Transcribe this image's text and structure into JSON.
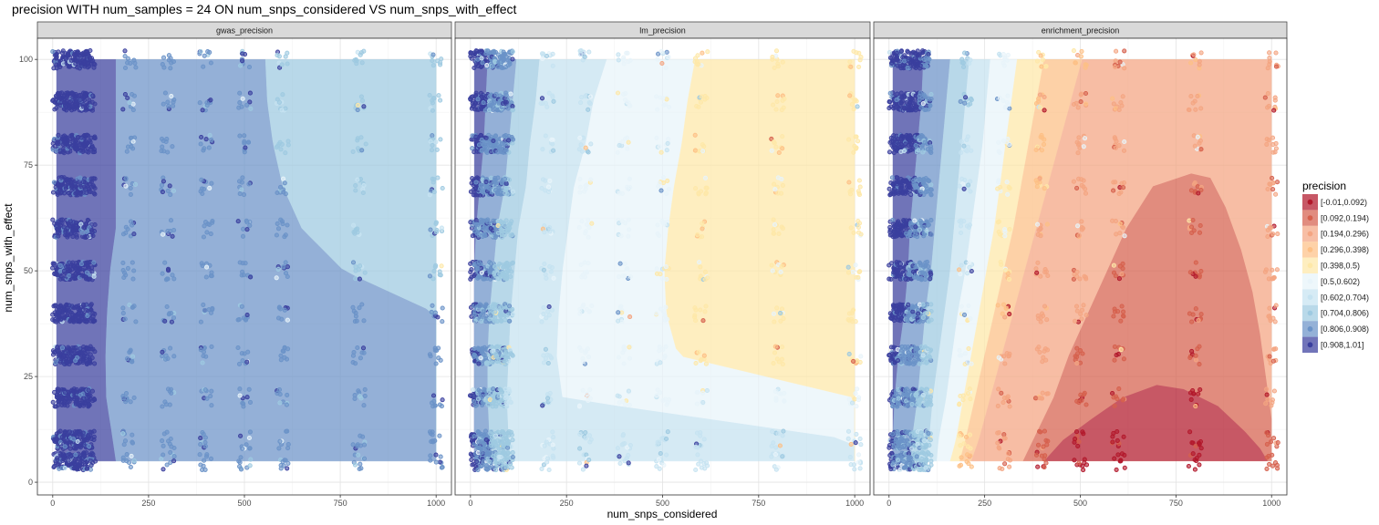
{
  "chart_data": {
    "type": "heatmap",
    "title": "precision WITH num_samples = 24 ON num_snps_considered VS num_snps_with_effect",
    "xlabel": "num_snps_considered",
    "ylabel": "num_snps_with_effect",
    "xlim": [
      -40,
      1040
    ],
    "ylim": [
      -3,
      105
    ],
    "x_ticks": [
      {
        "value": 0,
        "label": "0"
      },
      {
        "value": 250,
        "label": "250"
      },
      {
        "value": 500,
        "label": "500"
      },
      {
        "value": 750,
        "label": "750"
      },
      {
        "value": 1000,
        "label": "1000"
      }
    ],
    "y_ticks": [
      {
        "value": 0,
        "label": "0"
      },
      {
        "value": 25,
        "label": "25"
      },
      {
        "value": 50,
        "label": "50"
      },
      {
        "value": 75,
        "label": "75"
      },
      {
        "value": 100,
        "label": "100"
      }
    ],
    "x_sample_values": [
      10,
      20,
      30,
      40,
      50,
      60,
      70,
      80,
      90,
      100,
      200,
      300,
      400,
      500,
      600,
      800,
      1000
    ],
    "y_sample_values": [
      5,
      10,
      20,
      30,
      40,
      50,
      60,
      70,
      80,
      90,
      100
    ],
    "fill_extent": {
      "x": [
        10,
        1000
      ],
      "y": [
        5,
        100
      ]
    },
    "legend": {
      "title": "precision",
      "position": "right",
      "bins": [
        {
          "label": "[-0.01,0.092)",
          "color": "#b2182b"
        },
        {
          "label": "[0.092,0.194)",
          "color": "#d6604d"
        },
        {
          "label": "[0.194,0.296)",
          "color": "#f4a582"
        },
        {
          "label": "[0.296,0.398)",
          "color": "#fdc086"
        },
        {
          "label": "[0.398,0.5)",
          "color": "#fee8a8"
        },
        {
          "label": "[0.5,0.602)",
          "color": "#e8f4fa"
        },
        {
          "label": "[0.602,0.704)",
          "color": "#c6e3f1"
        },
        {
          "label": "[0.704,0.806)",
          "color": "#9ecae1"
        },
        {
          "label": "[0.806,0.908)",
          "color": "#6b93c8"
        },
        {
          "label": "[0.908,1.01]",
          "color": "#3a3f9e"
        }
      ]
    },
    "panels": [
      {
        "name": "gwas_precision",
        "regions": [
          {
            "bin": 9,
            "boundary": [
              [
                5,
                165
              ],
              [
                10,
                157
              ],
              [
                20,
                140
              ],
              [
                30,
                138
              ],
              [
                40,
                142
              ],
              [
                50,
                150
              ],
              [
                60,
                165
              ],
              [
                70,
                165
              ],
              [
                80,
                165
              ],
              [
                90,
                165
              ],
              [
                100,
                165
              ]
            ]
          },
          {
            "bin": 8,
            "boundary": [
              [
                5,
                1000
              ],
              [
                10,
                1000
              ],
              [
                20,
                1000
              ],
              [
                30,
                1000
              ],
              [
                40,
                1000
              ],
              [
                50,
                760
              ],
              [
                60,
                650
              ],
              [
                70,
                600
              ],
              [
                80,
                575
              ],
              [
                90,
                560
              ],
              [
                100,
                555
              ]
            ]
          },
          {
            "bin": 7,
            "boundary": [
              [
                5,
                1000
              ],
              [
                100,
                1000
              ]
            ]
          }
        ]
      },
      {
        "name": "lm_precision",
        "regions": [
          {
            "bin": 9,
            "boundary": [
              [
                5,
                10
              ],
              [
                10,
                10
              ],
              [
                20,
                10
              ],
              [
                30,
                10
              ],
              [
                40,
                10
              ],
              [
                50,
                10
              ],
              [
                60,
                15
              ],
              [
                70,
                25
              ],
              [
                80,
                35
              ],
              [
                90,
                40
              ],
              [
                100,
                45
              ]
            ]
          },
          {
            "bin": 8,
            "boundary": [
              [
                5,
                60
              ],
              [
                10,
                50
              ],
              [
                20,
                45
              ],
              [
                30,
                45
              ],
              [
                40,
                50
              ],
              [
                50,
                60
              ],
              [
                60,
                70
              ],
              [
                70,
                90
              ],
              [
                80,
                100
              ],
              [
                90,
                110
              ],
              [
                100,
                120
              ]
            ]
          },
          {
            "bin": 7,
            "boundary": [
              [
                5,
                105
              ],
              [
                10,
                100
              ],
              [
                20,
                95
              ],
              [
                30,
                100
              ],
              [
                40,
                105
              ],
              [
                50,
                115
              ],
              [
                60,
                125
              ],
              [
                70,
                145
              ],
              [
                80,
                155
              ],
              [
                90,
                170
              ],
              [
                100,
                180
              ]
            ]
          },
          {
            "bin": 6,
            "boundary": [
              [
                5,
                1000
              ],
              [
                10,
                1000
              ],
              [
                20,
                240
              ],
              [
                30,
                225
              ],
              [
                40,
                230
              ],
              [
                50,
                240
              ],
              [
                60,
                255
              ],
              [
                70,
                270
              ],
              [
                80,
                300
              ],
              [
                90,
                320
              ],
              [
                100,
                355
              ]
            ]
          },
          {
            "bin": 5,
            "boundary": [
              [
                5,
                1000
              ],
              [
                10,
                1000
              ],
              [
                20,
                1000
              ],
              [
                30,
                540
              ],
              [
                40,
                510
              ],
              [
                50,
                505
              ],
              [
                60,
                515
              ],
              [
                70,
                530
              ],
              [
                80,
                550
              ],
              [
                90,
                565
              ],
              [
                100,
                585
              ]
            ]
          },
          {
            "bin": 4,
            "boundary": [
              [
                5,
                1000
              ],
              [
                10,
                1000
              ],
              [
                20,
                1000
              ],
              [
                30,
                1000
              ],
              [
                40,
                1000
              ],
              [
                50,
                1000
              ],
              [
                60,
                1000
              ],
              [
                70,
                1000
              ],
              [
                80,
                1000
              ],
              [
                90,
                1000
              ],
              [
                100,
                1000
              ]
            ]
          }
        ]
      },
      {
        "name": "enrichment_precision",
        "regions": [
          {
            "bin": 9,
            "boundary": [
              [
                5,
                10
              ],
              [
                10,
                10
              ],
              [
                20,
                15
              ],
              [
                30,
                25
              ],
              [
                40,
                40
              ],
              [
                50,
                50
              ],
              [
                60,
                55
              ],
              [
                70,
                65
              ],
              [
                80,
                75
              ],
              [
                90,
                85
              ],
              [
                100,
                90
              ]
            ]
          },
          {
            "bin": 8,
            "boundary": [
              [
                5,
                60
              ],
              [
                10,
                60
              ],
              [
                20,
                75
              ],
              [
                30,
                85
              ],
              [
                40,
                95
              ],
              [
                50,
                110
              ],
              [
                60,
                120
              ],
              [
                70,
                130
              ],
              [
                80,
                140
              ],
              [
                90,
                150
              ],
              [
                100,
                160
              ]
            ]
          },
          {
            "bin": 7,
            "boundary": [
              [
                5,
                100
              ],
              [
                10,
                105
              ],
              [
                20,
                115
              ],
              [
                30,
                130
              ],
              [
                40,
                145
              ],
              [
                50,
                160
              ],
              [
                60,
                170
              ],
              [
                70,
                180
              ],
              [
                80,
                190
              ],
              [
                90,
                200
              ],
              [
                100,
                210
              ]
            ]
          },
          {
            "bin": 6,
            "boundary": [
              [
                5,
                125
              ],
              [
                10,
                130
              ],
              [
                20,
                150
              ],
              [
                30,
                165
              ],
              [
                40,
                180
              ],
              [
                50,
                200
              ],
              [
                60,
                215
              ],
              [
                70,
                230
              ],
              [
                80,
                245
              ],
              [
                90,
                255
              ],
              [
                100,
                265
              ]
            ]
          },
          {
            "bin": 5,
            "boundary": [
              [
                5,
                160
              ],
              [
                10,
                175
              ],
              [
                20,
                195
              ],
              [
                30,
                215
              ],
              [
                40,
                235
              ],
              [
                50,
                255
              ],
              [
                60,
                275
              ],
              [
                70,
                290
              ],
              [
                80,
                305
              ],
              [
                90,
                320
              ],
              [
                100,
                335
              ]
            ]
          },
          {
            "bin": 4,
            "boundary": [
              [
                5,
                185
              ],
              [
                10,
                200
              ],
              [
                20,
                225
              ],
              [
                30,
                250
              ],
              [
                40,
                275
              ],
              [
                50,
                300
              ],
              [
                60,
                325
              ],
              [
                70,
                345
              ],
              [
                80,
                365
              ],
              [
                90,
                385
              ],
              [
                100,
                405
              ]
            ]
          },
          {
            "bin": 3,
            "boundary": [
              [
                5,
                215
              ],
              [
                10,
                235
              ],
              [
                20,
                265
              ],
              [
                30,
                295
              ],
              [
                40,
                325
              ],
              [
                50,
                355
              ],
              [
                60,
                385
              ],
              [
                70,
                415
              ],
              [
                80,
                445
              ],
              [
                90,
                475
              ],
              [
                100,
                505
              ]
            ]
          },
          {
            "bin": 2,
            "boundary": [
              [
                5,
                1000
              ],
              [
                100,
                1000
              ]
            ]
          }
        ],
        "overlays": [
          {
            "bin": 1,
            "outline": [
              [
                5,
                350
              ],
              [
                20,
                430
              ],
              [
                30,
                470
              ],
              [
                40,
                520
              ],
              [
                50,
                570
              ],
              [
                60,
                620
              ],
              [
                70,
                690
              ],
              [
                73,
                790
              ],
              [
                72,
                840
              ],
              [
                65,
                880
              ],
              [
                55,
                920
              ],
              [
                45,
                950
              ],
              [
                35,
                970
              ],
              [
                25,
                985
              ],
              [
                15,
                1000
              ],
              [
                5,
                1000
              ]
            ]
          },
          {
            "bin": 0,
            "outline": [
              [
                5,
                405
              ],
              [
                10,
                455
              ],
              [
                15,
                530
              ],
              [
                20,
                610
              ],
              [
                23,
                700
              ],
              [
                22,
                770
              ],
              [
                18,
                860
              ],
              [
                12,
                930
              ],
              [
                8,
                970
              ],
              [
                5,
                990
              ]
            ]
          }
        ]
      }
    ]
  }
}
